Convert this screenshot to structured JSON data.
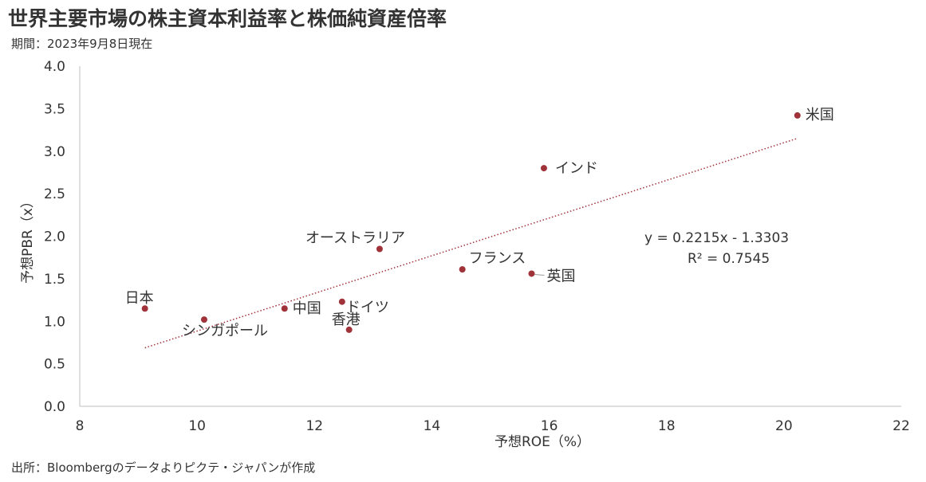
{
  "title": "世界主要市場の株主資本利益率と株価純資産倍率",
  "subtitle": "期間：2023年9月8日現在",
  "source": "出所：Bloombergのデータよりピクテ・ジャパンが作成",
  "colors": {
    "point": "#A0323A",
    "trend": "#A0323A",
    "axis": "#BFBFBF",
    "text": "#333333"
  },
  "chart_data": {
    "type": "scatter",
    "title": "世界主要市場の株主資本利益率と株価純資産倍率",
    "xlabel": "予想ROE（%）",
    "ylabel": "予想PBR（x）",
    "xlim": [
      8,
      22
    ],
    "ylim": [
      0,
      4
    ],
    "xticks": [
      "8",
      "10",
      "12",
      "14",
      "16",
      "18",
      "20",
      "22"
    ],
    "yticks": [
      "0.0",
      "0.5",
      "1.0",
      "1.5",
      "2.0",
      "2.5",
      "3.0",
      "3.5",
      "4.0"
    ],
    "grid": false,
    "points": [
      {
        "label": "米国",
        "x": 20.23,
        "y": 3.42
      },
      {
        "label": "インド",
        "x": 15.91,
        "y": 2.8
      },
      {
        "label": "オーストラリア",
        "x": 13.11,
        "y": 1.85
      },
      {
        "label": "フランス",
        "x": 14.52,
        "y": 1.61
      },
      {
        "label": "英国",
        "x": 15.7,
        "y": 1.56
      },
      {
        "label": "日本",
        "x": 9.11,
        "y": 1.15
      },
      {
        "label": "シンガポール",
        "x": 10.12,
        "y": 1.02
      },
      {
        "label": "中国",
        "x": 11.49,
        "y": 1.15
      },
      {
        "label": "ドイツ",
        "x": 12.47,
        "y": 1.23
      },
      {
        "label": "香港",
        "x": 12.59,
        "y": 0.9
      }
    ],
    "trendline": {
      "type": "linear",
      "slope": 0.2215,
      "intercept": -1.3303,
      "r2": 0.7545,
      "x_range": [
        9.11,
        20.23
      ]
    },
    "annotations": [
      "y = 0.2215x - 1.3303",
      "R² = 0.7545"
    ]
  }
}
